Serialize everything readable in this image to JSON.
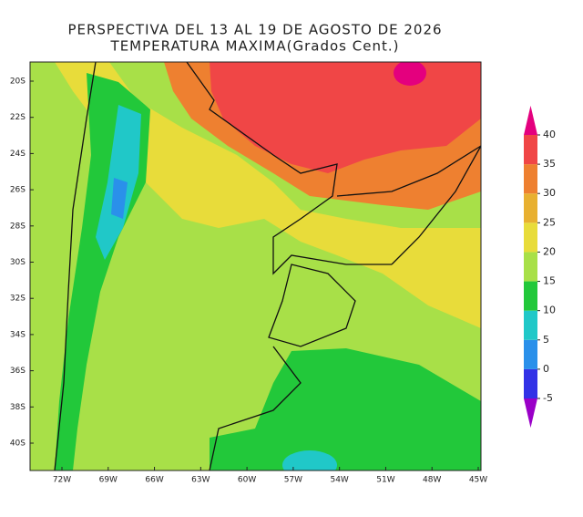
{
  "header": {
    "title": "PERSPECTIVA DEL 13 AL 19 DE AGOSTO DE 2026",
    "subtitle": "TEMPERATURA MAXIMA(Grados Cent.)"
  },
  "map": {
    "lat_labels": [
      "20S",
      "22S",
      "24S",
      "26S",
      "28S",
      "30S",
      "32S",
      "34S",
      "36S",
      "38S",
      "40S"
    ],
    "lon_labels": [
      "72W",
      "69W",
      "66W",
      "63W",
      "60W",
      "57W",
      "54W",
      "51W",
      "48W",
      "45W"
    ]
  },
  "colorbar": {
    "levels": [
      -5,
      0,
      5,
      10,
      15,
      20,
      25,
      30,
      35,
      40
    ],
    "colors": [
      "#9a00c8",
      "#3232e6",
      "#2a90ea",
      "#20c8c8",
      "#22c83a",
      "#a8e048",
      "#e8dc3a",
      "#e8b030",
      "#ee8030",
      "#f04646",
      "#e4007e"
    ]
  }
}
